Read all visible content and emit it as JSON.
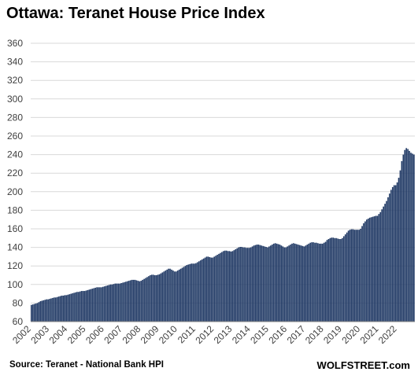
{
  "title": "Ottawa: Teranet House Price Index",
  "source": "Source: Teranet - National Bank HPI",
  "brand": "WOLFSTREET.com",
  "colors": {
    "bar": "#1f3864",
    "grid": "#d9d9d9",
    "axis_text": "#404040"
  },
  "chart_data": {
    "type": "bar",
    "title": "Ottawa: Teranet House Price Index",
    "xlabel": "",
    "ylabel": "",
    "ylim": [
      60,
      360
    ],
    "yticks": [
      60,
      80,
      100,
      120,
      140,
      160,
      180,
      200,
      220,
      240,
      260,
      280,
      300,
      320,
      340,
      360
    ],
    "grid": true,
    "year_labels": [
      "2002",
      "2003",
      "2004",
      "2005",
      "2006",
      "2007",
      "2008",
      "2009",
      "2010",
      "2011",
      "2012",
      "2013",
      "2014",
      "2015",
      "2016",
      "2017",
      "2018",
      "2019",
      "2020",
      "2021",
      "2022"
    ],
    "frequency": "monthly",
    "start": "2002-01",
    "values": [
      78,
      78.5,
      79,
      79.5,
      80,
      81,
      82,
      82.5,
      83,
      83.5,
      84,
      84,
      84.5,
      85,
      85.5,
      86,
      86,
      86.5,
      87,
      87.5,
      88,
      88,
      88.5,
      88.5,
      89,
      89.5,
      90,
      90.5,
      91,
      91.5,
      92,
      92,
      92.5,
      93,
      93,
      93,
      93.5,
      94,
      94.5,
      95,
      95.5,
      96,
      96.5,
      97,
      97,
      97,
      97,
      97.5,
      98,
      98.5,
      99,
      99.5,
      100,
      100,
      100.5,
      101,
      101,
      101,
      101,
      101.5,
      102,
      102.5,
      103,
      103.5,
      104,
      104.5,
      105,
      105,
      105,
      104.5,
      104,
      103.5,
      104,
      105,
      106,
      107,
      108,
      109,
      110,
      110.5,
      110.5,
      110,
      110,
      110.5,
      111,
      112,
      113,
      114,
      115,
      116,
      117,
      117,
      116,
      115,
      114,
      114,
      115,
      116,
      117,
      118,
      119,
      120,
      121,
      121.5,
      122,
      122.5,
      122.5,
      122.5,
      123,
      124,
      125,
      126,
      127,
      128,
      129,
      130,
      130,
      129.5,
      129,
      129,
      130,
      131,
      132,
      133,
      134,
      135,
      136,
      136.5,
      136.5,
      136,
      136,
      135.5,
      136,
      137,
      138,
      139,
      140,
      140.5,
      140.5,
      140,
      140,
      139.5,
      139.5,
      139.5,
      140,
      141,
      142,
      142.5,
      143,
      143,
      142.5,
      142,
      141.5,
      141,
      140.5,
      140,
      141,
      142,
      143,
      144,
      144.5,
      144,
      143.5,
      143,
      142,
      141,
      140,
      140,
      141,
      142,
      143,
      144,
      144.5,
      144,
      143.5,
      143,
      142.5,
      142,
      141.5,
      141,
      142,
      143,
      144,
      145,
      145.5,
      145.5,
      145,
      145,
      144.5,
      144,
      144,
      144,
      145,
      146,
      148,
      149,
      150,
      150.5,
      150.5,
      150,
      150,
      149.5,
      149,
      149,
      150,
      152,
      154,
      156,
      158,
      159,
      159.5,
      159.5,
      159,
      159,
      159,
      159,
      160,
      163,
      166,
      168,
      170,
      171,
      172,
      172.5,
      173,
      173.5,
      174,
      174,
      176,
      178,
      181,
      184,
      187,
      190,
      194,
      198,
      202,
      205,
      207,
      207,
      210,
      215,
      223,
      233,
      240,
      245,
      247,
      246,
      244,
      242,
      241,
      240
    ]
  }
}
